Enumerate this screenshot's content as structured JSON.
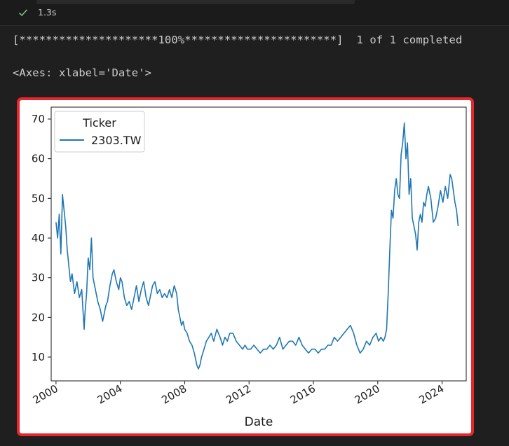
{
  "cell": {
    "status_icon": "check-icon",
    "exec_time": "1.3s"
  },
  "output": {
    "progress_line": "[*********************100%***********************]  1 of 1 completed",
    "repr_line": "<Axes: xlabel='Date'>"
  },
  "colors": {
    "background": "#1f1f1f",
    "success": "#89d185",
    "highlight_border": "#e8262b",
    "series": "#1f77b4"
  },
  "chart_data": {
    "type": "line",
    "title": "",
    "xlabel": "Date",
    "ylabel": "",
    "xlim": [
      1999.7,
      2025.5
    ],
    "ylim": [
      4,
      73
    ],
    "xticks": [
      2000,
      2004,
      2008,
      2012,
      2016,
      2020,
      2024
    ],
    "xtick_labels": [
      "2000",
      "2004",
      "2008",
      "2012",
      "2016",
      "2020",
      "2024"
    ],
    "yticks": [
      10,
      20,
      30,
      40,
      50,
      60,
      70
    ],
    "ytick_labels": [
      "10",
      "20",
      "30",
      "40",
      "50",
      "60",
      "70"
    ],
    "grid": false,
    "legend": {
      "title": "Ticker",
      "position": "top-left",
      "entries": [
        "2303.TW"
      ]
    },
    "series": [
      {
        "name": "2303.TW",
        "x": [
          2000.0,
          2000.1,
          2000.2,
          2000.3,
          2000.4,
          2000.5,
          2000.6,
          2000.7,
          2000.8,
          2000.9,
          2001.0,
          2001.15,
          2001.3,
          2001.45,
          2001.6,
          2001.75,
          2001.8,
          2001.9,
          2002.0,
          2002.1,
          2002.2,
          2002.3,
          2002.45,
          2002.6,
          2002.75,
          2002.9,
          2003.0,
          2003.1,
          2003.2,
          2003.35,
          2003.5,
          2003.6,
          2003.75,
          2003.9,
          2004.0,
          2004.1,
          2004.25,
          2004.4,
          2004.55,
          2004.7,
          2004.85,
          2005.0,
          2005.15,
          2005.3,
          2005.45,
          2005.6,
          2005.75,
          2005.9,
          2006.0,
          2006.15,
          2006.3,
          2006.45,
          2006.6,
          2006.75,
          2006.9,
          2007.05,
          2007.2,
          2007.35,
          2007.5,
          2007.6,
          2007.7,
          2007.8,
          2007.9,
          2008.0,
          2008.15,
          2008.3,
          2008.45,
          2008.6,
          2008.75,
          2008.85,
          2008.95,
          2009.05,
          2009.2,
          2009.35,
          2009.5,
          2009.65,
          2009.8,
          2010.0,
          2010.2,
          2010.35,
          2010.5,
          2010.65,
          2010.8,
          2011.0,
          2011.2,
          2011.4,
          2011.6,
          2011.75,
          2011.9,
          2012.1,
          2012.3,
          2012.5,
          2012.7,
          2012.9,
          2013.1,
          2013.3,
          2013.5,
          2013.7,
          2013.9,
          2014.1,
          2014.3,
          2014.5,
          2014.7,
          2014.9,
          2015.1,
          2015.3,
          2015.5,
          2015.7,
          2015.9,
          2016.1,
          2016.3,
          2016.5,
          2016.7,
          2016.9,
          2017.1,
          2017.3,
          2017.5,
          2017.7,
          2017.9,
          2018.1,
          2018.3,
          2018.5,
          2018.7,
          2018.9,
          2019.1,
          2019.3,
          2019.5,
          2019.7,
          2019.9,
          2020.05,
          2020.2,
          2020.35,
          2020.45,
          2020.55,
          2020.65,
          2020.75,
          2020.85,
          2020.95,
          2021.05,
          2021.15,
          2021.25,
          2021.35,
          2021.45,
          2021.55,
          2021.65,
          2021.75,
          2021.85,
          2021.95,
          2022.05,
          2022.15,
          2022.25,
          2022.35,
          2022.45,
          2022.55,
          2022.65,
          2022.75,
          2022.85,
          2022.95,
          2023.05,
          2023.15,
          2023.3,
          2023.45,
          2023.6,
          2023.75,
          2023.9,
          2024.05,
          2024.2,
          2024.35,
          2024.5,
          2024.6,
          2024.7,
          2024.8,
          2024.9,
          2025.0
        ],
        "values": [
          44,
          40,
          46,
          36,
          51,
          47,
          43,
          37,
          33,
          29,
          31,
          26,
          29,
          25,
          27,
          17,
          21,
          26,
          35,
          32,
          40,
          30,
          27,
          24,
          22,
          19,
          21,
          23,
          24,
          28,
          31,
          32,
          29,
          27,
          30,
          29,
          25,
          23,
          24,
          22,
          25,
          28,
          24,
          27,
          29,
          25,
          23,
          26,
          28,
          29,
          26,
          27,
          25,
          26,
          25,
          27,
          25,
          28,
          26,
          22,
          20,
          18,
          19,
          17,
          16,
          14,
          13,
          11,
          8,
          7,
          8,
          10,
          12,
          14,
          15,
          16,
          14,
          17,
          15,
          13,
          15,
          14,
          16,
          16,
          14,
          13,
          12,
          13,
          12,
          12,
          13,
          12,
          11,
          12,
          12,
          13,
          12,
          13,
          15,
          12,
          13,
          14,
          14,
          13,
          15,
          13,
          12,
          11,
          12,
          12,
          11,
          12,
          12,
          13,
          13,
          15,
          14,
          15,
          16,
          17,
          18,
          16,
          13,
          11,
          12,
          14,
          13,
          15,
          16,
          14,
          15,
          14,
          15,
          17,
          26,
          37,
          47,
          45,
          52,
          55,
          51,
          50,
          61,
          64,
          69,
          60,
          64,
          51,
          55,
          45,
          43,
          41,
          37,
          44,
          46,
          44,
          49,
          48,
          51,
          53,
          50,
          44,
          45,
          48,
          52,
          49,
          53,
          50,
          56,
          55,
          52,
          49,
          47,
          43
        ]
      }
    ]
  }
}
